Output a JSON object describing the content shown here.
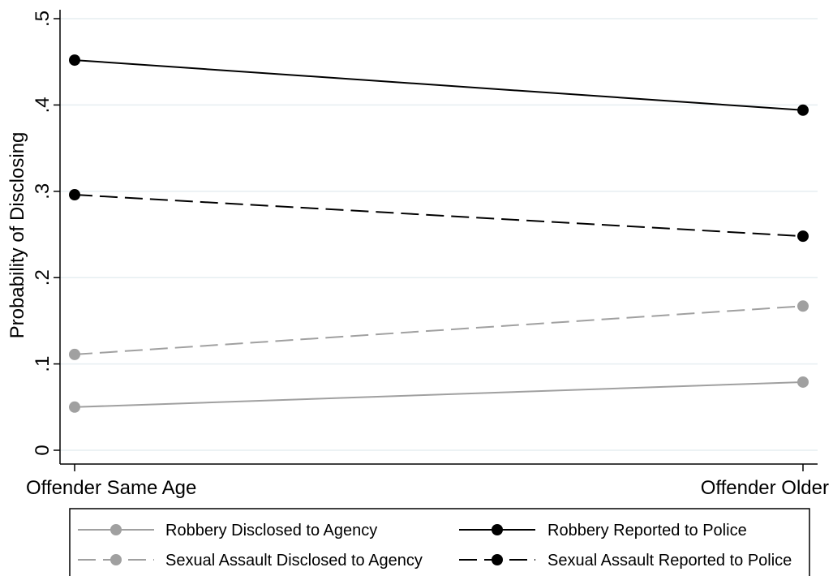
{
  "chart_data": {
    "type": "line",
    "ylabel": "Probability of Disclosing",
    "xlabel": "",
    "categories": [
      "Offender Same Age",
      "Offender Older"
    ],
    "ylim": [
      0,
      0.5
    ],
    "yticks": [
      0,
      0.1,
      0.2,
      0.3,
      0.4,
      0.5
    ],
    "ytick_labels": [
      "0",
      ".1",
      ".2",
      ".3",
      ".4",
      ".5"
    ],
    "grid": true,
    "legend_position": "bottom",
    "series": [
      {
        "name": "Robbery Disclosed to Agency",
        "values": [
          0.05,
          0.079
        ],
        "color": "#a0a0a0",
        "dash": "solid"
      },
      {
        "name": "Robbery Reported to Police",
        "values": [
          0.452,
          0.394
        ],
        "color": "#000000",
        "dash": "solid"
      },
      {
        "name": "Sexual Assault Disclosed to Agency",
        "values": [
          0.111,
          0.167
        ],
        "color": "#a0a0a0",
        "dash": "dashed"
      },
      {
        "name": "Sexual Assault Reported to Police",
        "values": [
          0.296,
          0.248
        ],
        "color": "#000000",
        "dash": "dashed"
      }
    ]
  }
}
